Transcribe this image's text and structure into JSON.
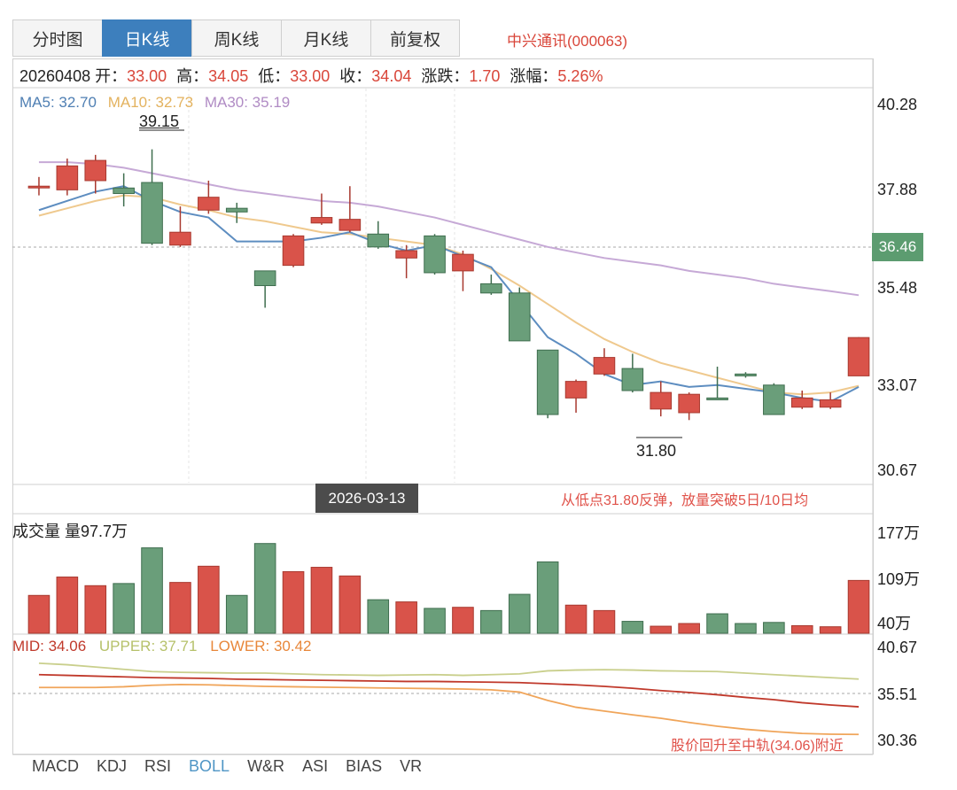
{
  "tabs": [
    {
      "label": "分时图",
      "active": false
    },
    {
      "label": "日K线",
      "active": true
    },
    {
      "label": "周K线",
      "active": false
    },
    {
      "label": "月K线",
      "active": false
    },
    {
      "label": "前复权",
      "active": false
    }
  ],
  "stock_name": "中兴通讯(000063)",
  "info": {
    "date": "20260408",
    "open_label": "开：",
    "open": "33.00",
    "high_label": "高：",
    "high": "34.05",
    "low_label": "低：",
    "low": "33.00",
    "close_label": "收：",
    "close": "34.04",
    "change_label": "涨跌：",
    "change": "1.70",
    "pct_label": "涨幅：",
    "pct": "5.26%"
  },
  "ma": {
    "ma5": "MA5: 32.70",
    "ma10": "MA10: 32.73",
    "ma30": "MA30: 35.19"
  },
  "price_axis": [
    "40.28",
    "37.88",
    "35.48",
    "33.07",
    "30.67"
  ],
  "current_price": "36.46",
  "high_marker": "39.15",
  "low_marker": "31.80",
  "crosshair_date": "2026-03-13",
  "annotation_main": "从低点31.80反弹，放量突破5日/10日均",
  "volume": {
    "title": "成交量 量97.7万",
    "axis": [
      "177万",
      "109万",
      "40万"
    ]
  },
  "boll": {
    "mid": "MID: 34.06",
    "upper": "UPPER: 37.71",
    "lower": "LOWER: 30.42",
    "axis": [
      "40.67",
      "35.51",
      "30.36"
    ],
    "annotation": "股价回升至中轨(34.06)附近"
  },
  "indicator_tabs": [
    {
      "label": "MACD",
      "active": false
    },
    {
      "label": "KDJ",
      "active": false
    },
    {
      "label": "RSI",
      "active": false
    },
    {
      "label": "BOLL",
      "active": true
    },
    {
      "label": "W&R",
      "active": false
    },
    {
      "label": "ASI",
      "active": false
    },
    {
      "label": "BIAS",
      "active": false
    },
    {
      "label": "VR",
      "active": false
    }
  ],
  "colors": {
    "up": "#d9534a",
    "down": "#6a9e7a",
    "accent": "#3d7fbd"
  },
  "chart_data": {
    "type": "candlestick",
    "price_range": [
      30.1,
      40.8
    ],
    "candles": [
      {
        "o": 38.15,
        "c": 38.15,
        "h": 38.4,
        "l": 37.9
      },
      {
        "o": 38.05,
        "c": 38.7,
        "h": 38.9,
        "l": 37.9
      },
      {
        "o": 38.3,
        "c": 38.85,
        "h": 39.0,
        "l": 37.95
      },
      {
        "o": 38.1,
        "c": 37.95,
        "h": 38.5,
        "l": 37.6
      },
      {
        "o": 38.25,
        "c": 36.6,
        "h": 39.15,
        "l": 36.55
      },
      {
        "o": 36.55,
        "c": 36.9,
        "h": 37.6,
        "l": 36.5
      },
      {
        "o": 37.5,
        "c": 37.85,
        "h": 38.3,
        "l": 37.4
      },
      {
        "o": 37.55,
        "c": 37.45,
        "h": 37.7,
        "l": 37.15
      },
      {
        "o": 35.85,
        "c": 35.45,
        "h": 35.85,
        "l": 34.85
      },
      {
        "o": 36.0,
        "c": 36.8,
        "h": 36.85,
        "l": 35.95
      },
      {
        "o": 37.15,
        "c": 37.3,
        "h": 37.95,
        "l": 37.1
      },
      {
        "o": 36.95,
        "c": 37.25,
        "h": 38.15,
        "l": 36.9
      },
      {
        "o": 36.85,
        "c": 36.5,
        "h": 37.2,
        "l": 36.45
      },
      {
        "o": 36.2,
        "c": 36.4,
        "h": 36.55,
        "l": 35.65
      },
      {
        "o": 36.8,
        "c": 35.8,
        "h": 36.85,
        "l": 35.75
      },
      {
        "o": 35.85,
        "c": 36.3,
        "h": 36.4,
        "l": 35.3
      },
      {
        "o": 35.5,
        "c": 35.25,
        "h": 35.75,
        "l": 35.2
      },
      {
        "o": 35.25,
        "c": 33.95,
        "h": 35.4,
        "l": 33.95
      },
      {
        "o": 33.7,
        "c": 31.95,
        "h": 33.7,
        "l": 31.85
      },
      {
        "o": 32.4,
        "c": 32.85,
        "h": 32.9,
        "l": 32.0
      },
      {
        "o": 33.05,
        "c": 33.5,
        "h": 33.75,
        "l": 33.0
      },
      {
        "o": 33.2,
        "c": 32.6,
        "h": 33.6,
        "l": 32.55
      },
      {
        "o": 32.1,
        "c": 32.55,
        "h": 32.85,
        "l": 31.9
      },
      {
        "o": 32.0,
        "c": 32.5,
        "h": 32.55,
        "l": 31.8
      },
      {
        "o": 32.4,
        "c": 32.35,
        "h": 33.25,
        "l": 32.35
      },
      {
        "o": 33.05,
        "c": 33.0,
        "h": 33.1,
        "l": 32.95
      },
      {
        "o": 32.75,
        "c": 31.95,
        "h": 32.8,
        "l": 31.95
      },
      {
        "o": 32.15,
        "c": 32.4,
        "h": 32.6,
        "l": 32.1
      },
      {
        "o": 32.15,
        "c": 32.35,
        "h": 32.55,
        "l": 32.1
      },
      {
        "o": 33.0,
        "c": 34.04,
        "h": 34.05,
        "l": 33.0
      }
    ],
    "ma5": [
      37.5,
      37.75,
      38.0,
      38.15,
      37.75,
      37.45,
      37.3,
      36.65,
      36.65,
      36.65,
      36.75,
      36.9,
      36.6,
      36.4,
      36.55,
      36.25,
      35.95,
      35.0,
      34.05,
      33.6,
      33.05,
      32.75,
      32.85,
      32.7,
      32.75,
      32.65,
      32.55,
      32.4,
      32.3,
      32.7
    ],
    "ma10": [
      37.35,
      37.55,
      37.75,
      37.9,
      37.85,
      37.65,
      37.5,
      37.3,
      37.2,
      37.05,
      36.9,
      36.85,
      36.75,
      36.65,
      36.55,
      36.3,
      35.9,
      35.45,
      34.95,
      34.45,
      34.0,
      33.65,
      33.35,
      33.15,
      32.95,
      32.75,
      32.55,
      32.5,
      32.55,
      32.73
    ],
    "ma30": [
      38.8,
      38.8,
      38.75,
      38.65,
      38.5,
      38.35,
      38.2,
      38.05,
      37.95,
      37.85,
      37.75,
      37.7,
      37.6,
      37.45,
      37.3,
      37.1,
      36.9,
      36.7,
      36.5,
      36.35,
      36.2,
      36.1,
      36.0,
      35.85,
      35.75,
      35.65,
      35.5,
      35.4,
      35.3,
      35.19
    ],
    "volume_range": [
      0,
      195
    ],
    "volumes": [
      70,
      104,
      88,
      92,
      158,
      94,
      124,
      70,
      166,
      114,
      122,
      106,
      62,
      58,
      46,
      48,
      42,
      72,
      132,
      52,
      42,
      22,
      13,
      18,
      36,
      18,
      20,
      14,
      12,
      97.7
    ],
    "boll_range": [
      28.0,
      42.0
    ],
    "boll_upper": [
      39.8,
      39.6,
      39.3,
      39.0,
      38.7,
      38.6,
      38.55,
      38.5,
      38.5,
      38.4,
      38.3,
      38.25,
      38.2,
      38.25,
      38.3,
      38.2,
      38.3,
      38.4,
      38.8,
      38.9,
      38.95,
      38.9,
      38.8,
      38.75,
      38.7,
      38.5,
      38.3,
      38.1,
      37.9,
      37.71
    ],
    "boll_mid": [
      38.3,
      38.2,
      38.1,
      38.0,
      37.9,
      37.85,
      37.8,
      37.7,
      37.65,
      37.6,
      37.55,
      37.5,
      37.45,
      37.4,
      37.4,
      37.35,
      37.3,
      37.25,
      37.1,
      36.95,
      36.75,
      36.5,
      36.2,
      35.95,
      35.65,
      35.3,
      35.0,
      34.6,
      34.3,
      34.06
    ],
    "boll_lower": [
      36.6,
      36.6,
      36.6,
      36.7,
      36.9,
      37.0,
      36.95,
      36.85,
      36.75,
      36.7,
      36.65,
      36.6,
      36.55,
      36.5,
      36.45,
      36.4,
      36.3,
      36.0,
      34.9,
      34.0,
      33.5,
      33.0,
      32.55,
      32.0,
      31.5,
      31.1,
      30.8,
      30.55,
      30.45,
      30.42
    ]
  }
}
